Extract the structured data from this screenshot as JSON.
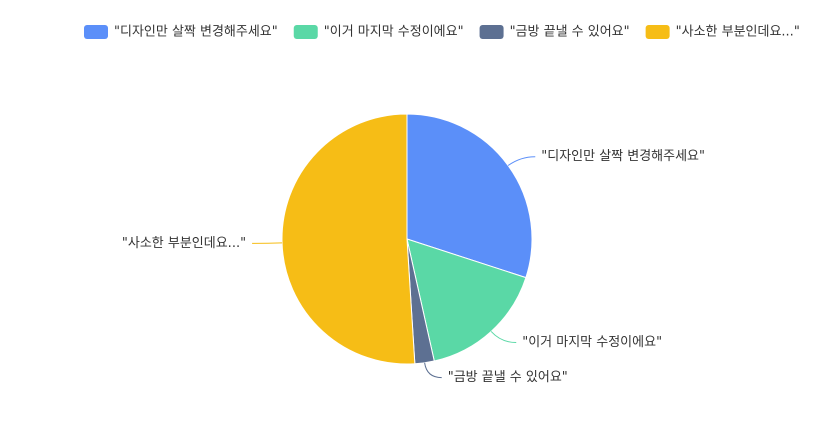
{
  "chart_data": {
    "type": "pie",
    "categories": [
      "\"디자인만 살짝 변경해주세요\"",
      "\"이거 마지막 수정이에요\"",
      "\"금방 끝낼 수 있어요\"",
      "\"사소한 부분인데요...\""
    ],
    "values": [
      30,
      16.5,
      2.5,
      51
    ],
    "colors": [
      "#5b8ff9",
      "#5ad8a6",
      "#5d7092",
      "#f6bd16"
    ],
    "legend": "top"
  }
}
